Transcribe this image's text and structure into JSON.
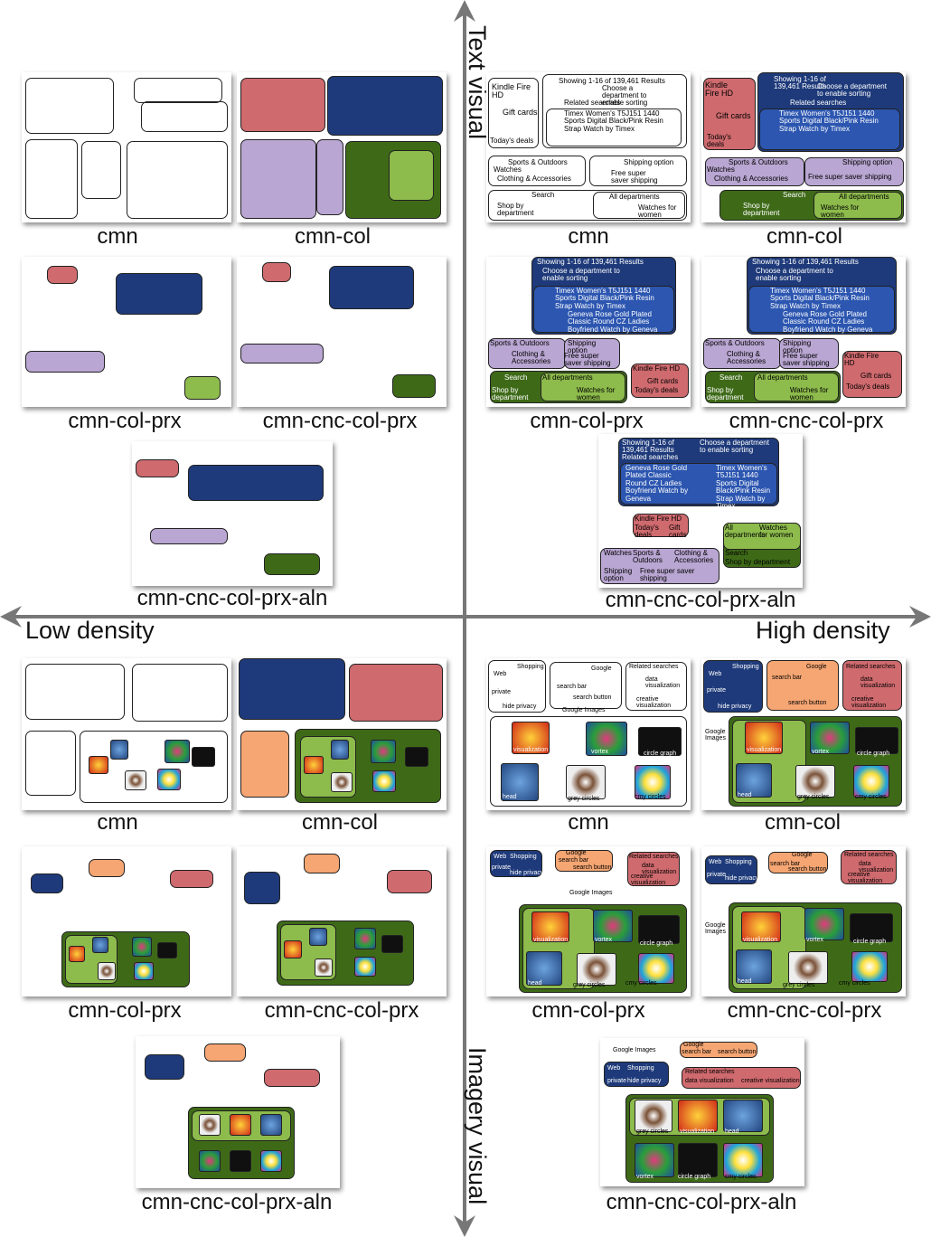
{
  "axes": {
    "top": "Text visual",
    "bottom": "Imagery visual",
    "left": "Low density",
    "right": "High density"
  },
  "captions": {
    "q1_cmn": "cmn",
    "q1_cmn_col": "cmn-col",
    "q1_cmn_col_prx": "cmn-col-prx",
    "q1_cmn_cnc_col_prx": "cmn-cnc-col-prx",
    "q1_cmn_cnc_col_prx_aln": "cmn-cnc-col-prx-aln",
    "q2_cmn": "cmn",
    "q2_cmn_col": "cmn-col",
    "q2_cmn_col_prx": "cmn-col-prx",
    "q2_cmn_cnc_col_prx": "cmn-cnc-col-prx",
    "q2_cmn_cnc_col_prx_aln": "cmn-cnc-col-prx-aln",
    "q3_cmn": "cmn",
    "q3_cmn_col": "cmn-col",
    "q3_cmn_col_prx": "cmn-col-prx",
    "q3_cmn_cnc_col_prx": "cmn-cnc-col-prx",
    "q3_cmn_cnc_col_prx_aln": "cmn-cnc-col-prx-aln",
    "q4_cmn": "cmn",
    "q4_cmn_col": "cmn-col",
    "q4_cmn_col_prx": "cmn-col-prx",
    "q4_cmn_cnc_col_prx": "cmn-cnc-col-prx",
    "q4_cmn_cnc_col_prx_aln": "cmn-cnc-col-prx-aln"
  },
  "amazon": {
    "kindle": "Kindle Fire HD",
    "gift_cards": "Gift cards",
    "todays_deals": "Today's deals",
    "showing": "Showing 1-16 of 139,461 Results",
    "choose_dept": "Choose a department to enable sorting",
    "related": "Related searches",
    "timex": "Timex Women's T5J151 1440 Sports Digital Black/Pink Resin Strap Watch by Timex",
    "geneva": "Geneva Rose Gold Plated Classic Round CZ Ladies Boyfriend Watch by Geneva",
    "sports": "Sports & Outdoors",
    "watches": "Watches",
    "clothing": "Clothing & Accessories",
    "shipping": "Shipping option",
    "free_super": "Free super saver shipping",
    "search": "Search",
    "shop_by": "Shop by department",
    "all_depts": "All departments",
    "watches_women": "Watches for women"
  },
  "google": {
    "web": "Web",
    "shopping": "Shopping",
    "private": "private",
    "hide_privacy": "hide privacy",
    "google": "Google",
    "search_bar": "search bar",
    "search_button": "search button",
    "related": "Related searches",
    "data_viz": "data visualization",
    "creative_viz": "creative visualization",
    "google_images": "Google Images",
    "visualization": "visualization",
    "vortex": "vortex",
    "circle_graph": "circle graph",
    "head": "head",
    "grey_circles": "grey circles",
    "cmy_circles": "cmy circles"
  },
  "colors": {
    "amazon_red": "#cf6a6e",
    "amazon_navy": "#1e3a7a",
    "amazon_purple": "#b9a6d2",
    "amazon_olive": "#3e6a18",
    "amazon_lime": "#8dbb4c",
    "google_orange": "#f6a673",
    "google_navy": "#1e3a7a",
    "google_red": "#cf6a6e",
    "google_green": "#3e6a18"
  }
}
